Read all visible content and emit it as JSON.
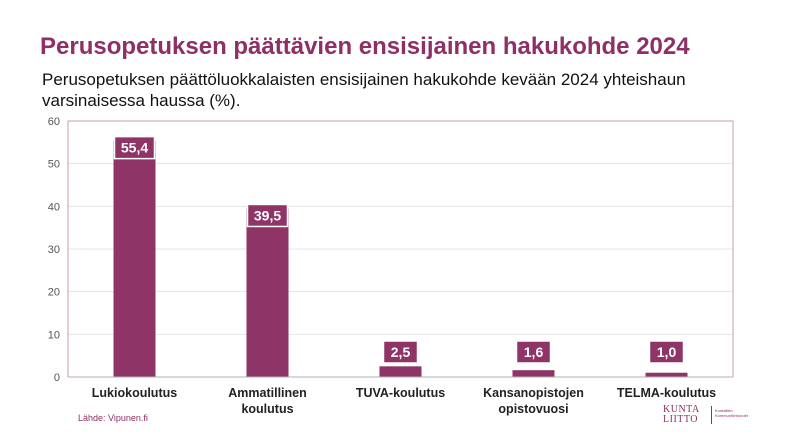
{
  "title": "Perusopetuksen päättävien ensisijainen hakukohde 2024",
  "subtitle": "Perusopetuksen päättöluokkalaisten ensisijainen hakukohde kevään 2024 yhteishaun varsinaisessa haussa (%).",
  "source": "Lähde: Vipunen.fi",
  "logo": {
    "line1": "KUNTA",
    "line2": "LIITTO",
    "sub1": "Kuntaliitto",
    "sub2": "Kommunförbundet"
  },
  "colors": {
    "bar": "#8e3466",
    "title": "#8e2f65",
    "frame": "#c79bb5",
    "grid": "#e4e4e4"
  },
  "chart_data": {
    "type": "bar",
    "categories": [
      [
        "Lukiokoulutus"
      ],
      [
        "Ammatillinen",
        "koulutus"
      ],
      [
        "TUVA-koulutus"
      ],
      [
        "Kansanopistojen",
        "opistovuosi"
      ],
      [
        "TELMA-koulutus"
      ]
    ],
    "values": [
      55.4,
      39.5,
      2.5,
      1.6,
      1.0
    ],
    "value_labels": [
      "55,4",
      "39,5",
      "2,5",
      "1,6",
      "1,0"
    ],
    "yticks": [
      "0",
      "10",
      "20",
      "30",
      "40",
      "50",
      "60"
    ],
    "ylim": [
      0,
      60
    ],
    "grid": true,
    "legend": "none"
  }
}
